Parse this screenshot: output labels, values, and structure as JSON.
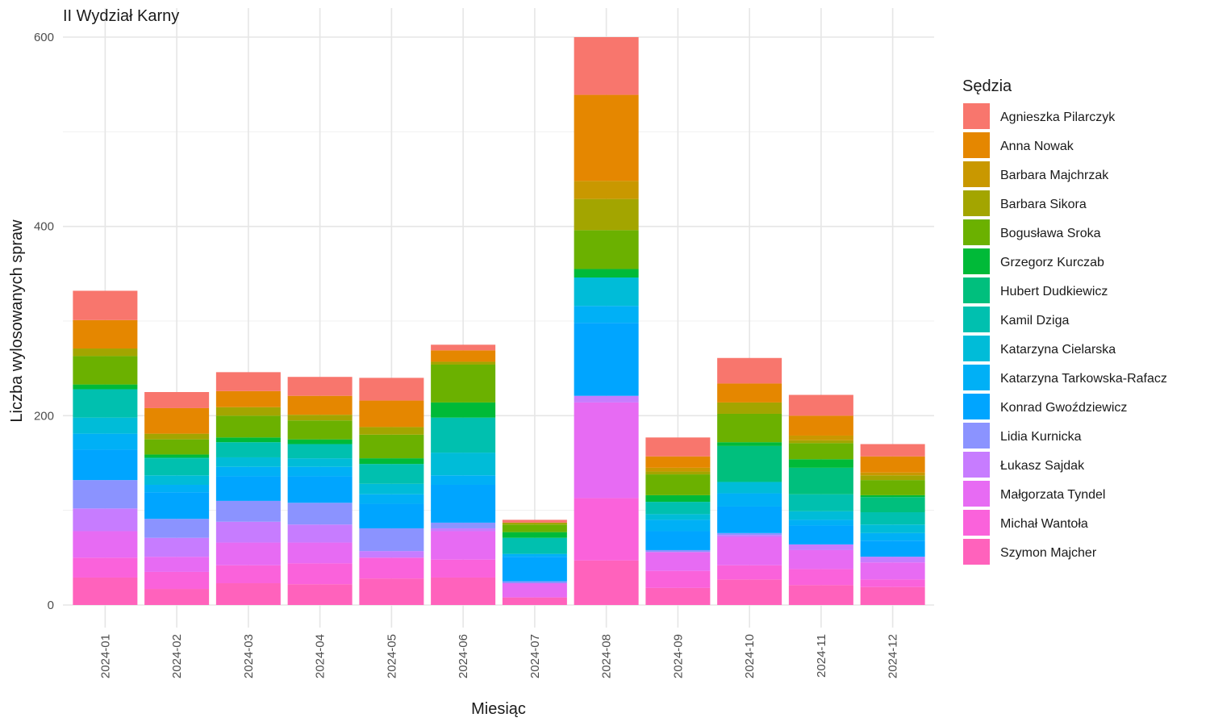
{
  "chart_data": {
    "type": "bar",
    "stacked": true,
    "title": "II Wydział Karny",
    "xlabel": "Miesiąc",
    "ylabel": "Liczba wylosowanych spraw",
    "ylim": [
      0,
      600
    ],
    "yticks": [
      0,
      200,
      400,
      600
    ],
    "grid": true,
    "legend": {
      "title": "Sędzia",
      "placement": "right"
    },
    "categories": [
      "2024-01",
      "2024-02",
      "2024-03",
      "2024-04",
      "2024-05",
      "2024-06",
      "2024-07",
      "2024-08",
      "2024-09",
      "2024-10",
      "2024-11",
      "2024-12"
    ],
    "series": [
      {
        "name": "Agnieszka Pilarczyk",
        "color": "#F8766D",
        "values": [
          31,
          17,
          20,
          20,
          24,
          6,
          3,
          61,
          20,
          27,
          22,
          13
        ]
      },
      {
        "name": "Anna Nowak",
        "color": "#E58700",
        "values": [
          30,
          27,
          17,
          20,
          28,
          12,
          0,
          91,
          12,
          20,
          21,
          17
        ]
      },
      {
        "name": "Barbara Majchrzak",
        "color": "#C99800",
        "values": [
          0,
          0,
          0,
          0,
          0,
          0,
          0,
          19,
          4,
          0,
          5,
          3
        ]
      },
      {
        "name": "Barbara Sikora",
        "color": "#A3A500",
        "values": [
          8,
          6,
          9,
          6,
          8,
          3,
          2,
          33,
          3,
          12,
          3,
          5
        ]
      },
      {
        "name": "Bogusława Sroka",
        "color": "#6BB100",
        "values": [
          30,
          16,
          23,
          20,
          25,
          40,
          8,
          41,
          22,
          30,
          17,
          16
        ]
      },
      {
        "name": "Grzegorz Kurczab",
        "color": "#00BA38",
        "values": [
          5,
          3,
          5,
          5,
          6,
          16,
          6,
          9,
          7,
          4,
          9,
          2
        ]
      },
      {
        "name": "Hubert Dudkiewicz",
        "color": "#00BF7D",
        "values": [
          0,
          1,
          0,
          0,
          0,
          0,
          0,
          0,
          0,
          38,
          28,
          16
        ]
      },
      {
        "name": "Kamil Dziga",
        "color": "#00C0AF",
        "values": [
          30,
          18,
          16,
          15,
          21,
          37,
          17,
          0,
          13,
          0,
          18,
          13
        ]
      },
      {
        "name": "Katarzyna Cielarska",
        "color": "#00BCD8",
        "values": [
          17,
          10,
          10,
          9,
          11,
          24,
          0,
          30,
          6,
          12,
          9,
          9
        ]
      },
      {
        "name": "Katarzyna Tarkowska-Rafacz",
        "color": "#00B0F6",
        "values": [
          17,
          8,
          10,
          10,
          10,
          10,
          3,
          18,
          12,
          14,
          6,
          8
        ]
      },
      {
        "name": "Konrad Gwoździewicz",
        "color": "#00A5FF",
        "values": [
          32,
          28,
          26,
          28,
          26,
          40,
          26,
          77,
          20,
          28,
          20,
          17
        ]
      },
      {
        "name": "Lidia Kurnicka",
        "color": "#8B93FF",
        "values": [
          30,
          20,
          22,
          23,
          24,
          6,
          2,
          0,
          2,
          2,
          0,
          0
        ]
      },
      {
        "name": "Łukasz Sajdak",
        "color": "#C77CFF",
        "values": [
          24,
          20,
          22,
          19,
          7,
          3,
          0,
          7,
          0,
          2,
          6,
          6
        ]
      },
      {
        "name": "Małgorzata Tyndel",
        "color": "#E76BF3",
        "values": [
          28,
          16,
          24,
          22,
          0,
          30,
          15,
          101,
          20,
          30,
          20,
          18
        ]
      },
      {
        "name": "Michał Wantoła",
        "color": "#FA62DB",
        "values": [
          21,
          18,
          19,
          22,
          22,
          19,
          0,
          66,
          18,
          15,
          17,
          8
        ]
      },
      {
        "name": "Szymon Majcher",
        "color": "#FF62BC",
        "values": [
          29,
          17,
          23,
          22,
          28,
          29,
          8,
          47,
          18,
          27,
          21,
          19
        ]
      }
    ]
  }
}
